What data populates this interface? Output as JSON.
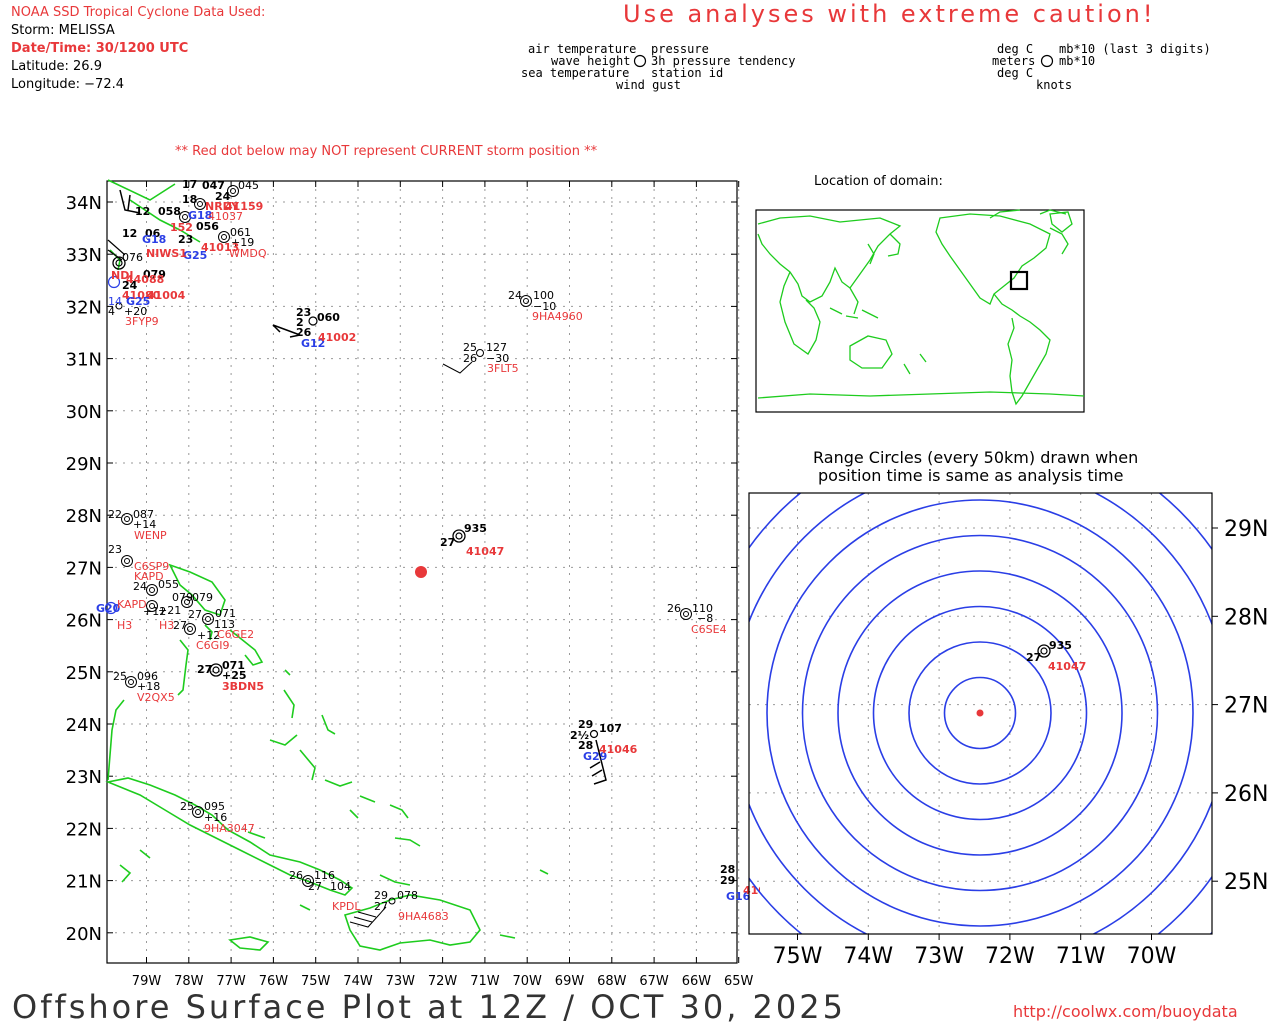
{
  "header": {
    "source": "NOAA SSD Tropical Cyclone Data Used:",
    "storm": "Storm: MELISSA",
    "datetime": "Date/Time: 30/1200 UTC",
    "latitude": "Latitude: 26.9",
    "longitude": "Longitude: −72.4"
  },
  "caution": "Use analyses with extreme caution!",
  "legend": {
    "left": [
      "air temperature",
      "wave height",
      "sea temperature"
    ],
    "right": [
      "pressure",
      "3h pressure tendency",
      "station id"
    ],
    "bottom": "wind gust",
    "units_left": [
      "deg C",
      "meters",
      "deg C"
    ],
    "units_right": [
      "mb*10 (last 3 digits)",
      "mb*10"
    ],
    "units_bottom": "knots"
  },
  "notice": "** Red dot below may NOT represent CURRENT storm position **",
  "main_map": {
    "lat_labels": [
      "34N",
      "33N",
      "32N",
      "31N",
      "30N",
      "29N",
      "28N",
      "27N",
      "26N",
      "25N",
      "24N",
      "23N",
      "22N",
      "21N",
      "20N"
    ],
    "lon_labels": [
      "79W",
      "78W",
      "77W",
      "76W",
      "75W",
      "74W",
      "73W",
      "72W",
      "71W",
      "70W",
      "69W",
      "68W",
      "67W",
      "66W",
      "65W"
    ],
    "storm_position": {
      "lat": 26.9,
      "lon": -72.4
    },
    "stations": [
      {
        "id": "41047",
        "air": "27",
        "pres": "935",
        "lat": 27.5,
        "lon": -71.5
      },
      {
        "id": "41002",
        "air": "23",
        "pres": "060",
        "wave": "2",
        "sea": "26",
        "gust": "G12",
        "lat": 32.3,
        "lon": -75.2
      },
      {
        "id": "3FLT5",
        "air": "25",
        "pres": "127",
        "sea": "26",
        "tend": "−30",
        "lat": 31.1,
        "lon": -71.0
      },
      {
        "id": "9HA4960",
        "air": "24",
        "pres": "100",
        "tend": "−10",
        "lat": 32.1,
        "lon": -70.0
      },
      {
        "id": "41046",
        "air": "29",
        "pres": "107",
        "wave": "2½",
        "sea": "28",
        "gust": "G29",
        "lat": 24.0,
        "lon": -68.4
      },
      {
        "id": "C6SE4",
        "air": "26",
        "pres": "110",
        "tend": "−8",
        "lat": 26.2,
        "lon": -66.0
      },
      {
        "id": "41043",
        "air": "28",
        "sea": "29",
        "gust": "G16",
        "lat": 21.1,
        "lon": -64.8
      },
      {
        "id": "9HA4683",
        "air": "29",
        "pres": "078",
        "sea": "27",
        "lat": 20.6,
        "lon": -73.4
      },
      {
        "id": "KPDL",
        "air": "26",
        "pres": "116",
        "sea": "27",
        "tend": "104",
        "lat": 21.0,
        "lon": -75.2
      },
      {
        "id": "9HA3047",
        "air": "25",
        "pres": "095",
        "tend": "+16",
        "lat": 22.3,
        "lon": -77.6
      },
      {
        "id": "V2QX5",
        "air": "25",
        "pres": "096",
        "tend": "+18",
        "lat": 24.8,
        "lon": -78.8
      },
      {
        "id": "WENP",
        "air": "22",
        "pres": "087",
        "tend": "+14",
        "lat": 27.9,
        "lon": -78.9
      },
      {
        "id": "C6GI9",
        "tend": "+12",
        "lat": 25.8,
        "lon": -77.9
      },
      {
        "id": "C6GE2",
        "pres": "113",
        "lat": 26.0,
        "lon": -77.2
      },
      {
        "id": "KAPD",
        "tend": "+24",
        "lat": 26.2,
        "lon": -79.5
      },
      {
        "id": "H3",
        "lat": 26.2,
        "lon": -78.5
      },
      {
        "id": "C6SP9",
        "air": "23",
        "pres": "092",
        "lat": 27.1,
        "lon": -78.9
      },
      {
        "id": "3FYP9",
        "tend": "+20",
        "lat": 32.0,
        "lon": -79.6
      },
      {
        "id": "WMDQ",
        "pres": "061",
        "tend": "+19",
        "lat": 33.3,
        "lon": -77.2
      },
      {
        "id": "NIWS1",
        "air": "23",
        "gust": "G25",
        "lat": 33.0,
        "lon": -77.9
      },
      {
        "id": "41013",
        "air": "23",
        "gust": "G25",
        "lat": 33.5,
        "lon": -77.6
      },
      {
        "id": "41037",
        "air": "24",
        "pres": "045",
        "lat": 34.2,
        "lon": -77.0
      },
      {
        "id": "41004",
        "air": "24",
        "pres": "079",
        "gust": "G25",
        "lat": 32.5,
        "lon": -79.3
      }
    ]
  },
  "domain_map": {
    "title": "Location of domain:"
  },
  "range_map": {
    "title_line1": "Range Circles (every 50km) drawn when",
    "title_line2": "position time is same as analysis time",
    "lat_labels": [
      "29N",
      "28N",
      "27N",
      "26N",
      "25N"
    ],
    "lon_labels": [
      "75W",
      "74W",
      "73W",
      "72W",
      "71W",
      "70W"
    ],
    "circle_count": 9,
    "circle_spacing_km": 50,
    "station": {
      "id": "41047",
      "air": "27",
      "pres": "935"
    }
  },
  "footer": {
    "title": "Offshore Surface Plot at 12Z / OCT 30, 2025",
    "url": "http://coolwx.com/buoydata"
  },
  "colors": {
    "red": "#e8383a",
    "coast": "#1ecc1e",
    "grid": "#9a9a9a",
    "range_circle": "#2a3ee6",
    "gust": "#2a3ee6"
  }
}
